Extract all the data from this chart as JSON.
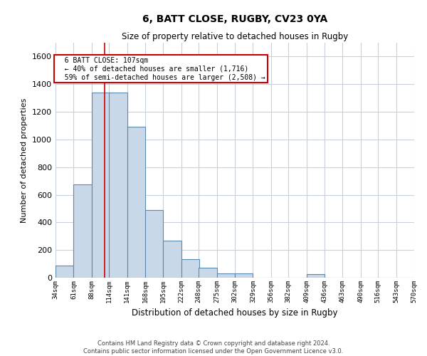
{
  "title_line1": "6, BATT CLOSE, RUGBY, CV23 0YA",
  "title_line2": "Size of property relative to detached houses in Rugby",
  "xlabel": "Distribution of detached houses by size in Rugby",
  "ylabel": "Number of detached properties",
  "bar_color": "#c8d8e8",
  "bar_edge_color": "#5a8ab0",
  "background_color": "#ffffff",
  "grid_color": "#c8d0dc",
  "property_size": 107,
  "property_line_color": "#cc0000",
  "annotation_text_line1": "  6 BATT CLOSE: 107sqm",
  "annotation_text_line2": "  ← 40% of detached houses are smaller (1,716)",
  "annotation_text_line3": "  59% of semi-detached houses are larger (2,508) →",
  "annotation_box_color": "#ffffff",
  "annotation_box_edge": "#cc0000",
  "footer_line1": "Contains HM Land Registry data © Crown copyright and database right 2024.",
  "footer_line2": "Contains public sector information licensed under the Open Government Licence v3.0.",
  "bins": [
    34,
    61,
    88,
    114,
    141,
    168,
    195,
    222,
    248,
    275,
    302,
    329,
    356,
    382,
    409,
    436,
    463,
    490,
    516,
    543,
    570
  ],
  "counts": [
    90,
    675,
    1340,
    1340,
    1090,
    490,
    270,
    135,
    70,
    30,
    30,
    0,
    0,
    0,
    25,
    0,
    0,
    0,
    0,
    0
  ],
  "ylim": [
    0,
    1700
  ],
  "yticks": [
    0,
    200,
    400,
    600,
    800,
    1000,
    1200,
    1400,
    1600
  ],
  "bin_labels": [
    "34sqm",
    "61sqm",
    "88sqm",
    "114sqm",
    "141sqm",
    "168sqm",
    "195sqm",
    "222sqm",
    "248sqm",
    "275sqm",
    "302sqm",
    "329sqm",
    "356sqm",
    "382sqm",
    "409sqm",
    "436sqm",
    "463sqm",
    "490sqm",
    "516sqm",
    "543sqm",
    "570sqm"
  ]
}
